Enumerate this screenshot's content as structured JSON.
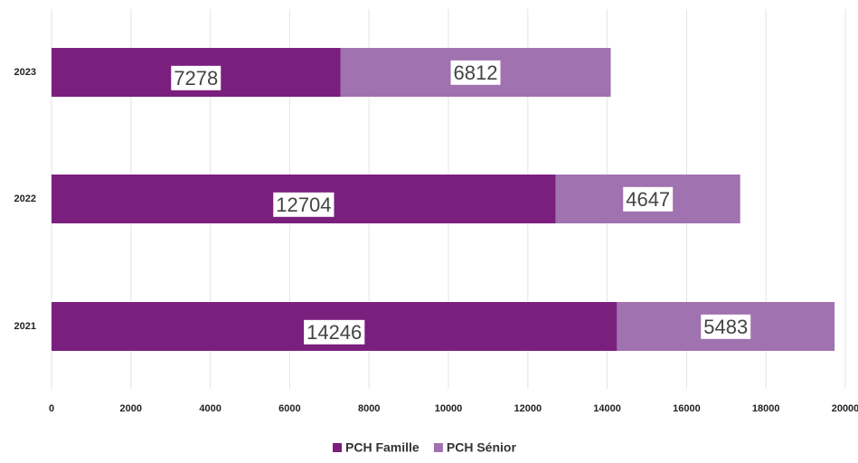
{
  "chart_data": {
    "type": "stacked-bar-horizontal",
    "categories": [
      "2023",
      "2022",
      "2021"
    ],
    "series": [
      {
        "name": "PCH Famille",
        "color": "#7b1f7e",
        "values": [
          7278,
          12704,
          14246
        ]
      },
      {
        "name": "PCH Sénior",
        "color": "#a072b0",
        "values": [
          6812,
          4647,
          5483
        ]
      }
    ],
    "xlim": [
      0,
      20000
    ],
    "xticks": [
      0,
      2000,
      4000,
      6000,
      8000,
      10000,
      12000,
      14000,
      16000,
      18000,
      20000
    ],
    "grid": true
  }
}
